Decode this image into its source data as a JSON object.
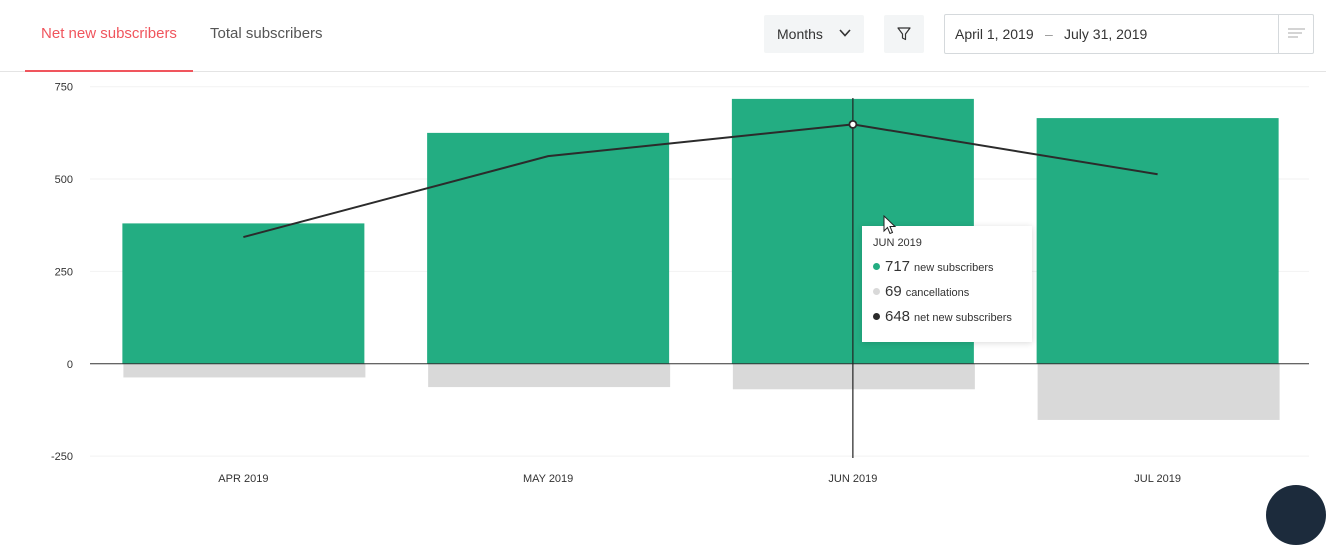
{
  "tabs": [
    {
      "label": "Net new subscribers",
      "active": true
    },
    {
      "label": "Total subscribers",
      "active": false
    }
  ],
  "controls": {
    "period": "Months",
    "date_from": "April 1, 2019",
    "date_sep": "–",
    "date_to": "July 31, 2019"
  },
  "colors": {
    "accent": "#f0555d",
    "new_subscribers": "#23ad82",
    "cancellations": "#d9d9d9",
    "net_line": "#2b2b2b"
  },
  "chart_data": {
    "type": "bar",
    "categories": [
      "APR 2019",
      "MAY 2019",
      "JUN 2019",
      "JUL 2019"
    ],
    "series": [
      {
        "key": "new",
        "type": "bar",
        "values": [
          380,
          625,
          717,
          665
        ]
      },
      {
        "key": "cancel",
        "type": "bar",
        "values": [
          -37,
          -63,
          -69,
          -152
        ]
      },
      {
        "key": "net",
        "type": "line",
        "values": [
          343,
          562,
          648,
          513
        ]
      }
    ],
    "y_ticks": [
      "750",
      "500",
      "250",
      "0",
      "-250"
    ],
    "y_tick_values": [
      750,
      500,
      250,
      0,
      -250
    ],
    "ylim": [
      -255,
      760
    ],
    "grid": true,
    "highlight_index": 2
  },
  "tooltip": {
    "title": "JUN 2019",
    "rows": [
      {
        "value": "717",
        "label": "new subscribers",
        "color": "#23ad82"
      },
      {
        "value": "69",
        "label": "cancellations",
        "color": "#d9d9d9"
      },
      {
        "value": "648",
        "label": "net new subscribers",
        "color": "#2b2b2b"
      }
    ]
  }
}
